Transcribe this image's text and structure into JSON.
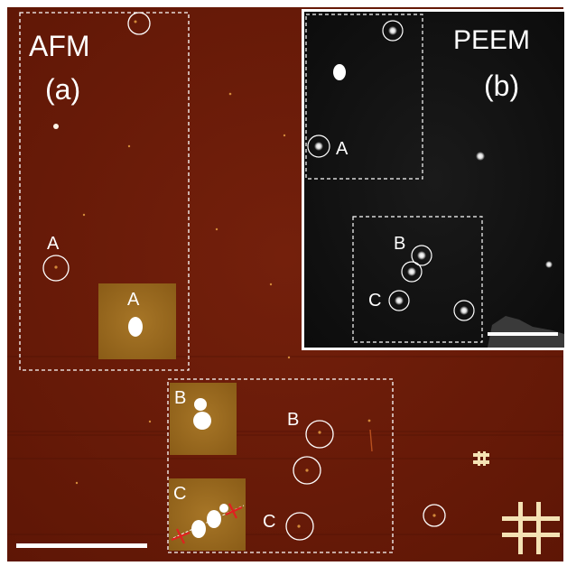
{
  "afm": {
    "title": "AFM",
    "panel": "(a)",
    "label_a": "A",
    "inset_label_a": "A",
    "label_b": "B",
    "label_c": "C",
    "inset_label_b": "B",
    "inset_label_c": "C"
  },
  "peem": {
    "title": "PEEM",
    "panel": "(b)",
    "label_a": "A",
    "label_b": "B",
    "label_c": "C"
  },
  "colors": {
    "afm_background": "#6b1a08",
    "peem_background": "#121212",
    "inset_background": "#9a6a1e",
    "marker_lines": "#ffffff",
    "cross_marks": "#e02020"
  }
}
